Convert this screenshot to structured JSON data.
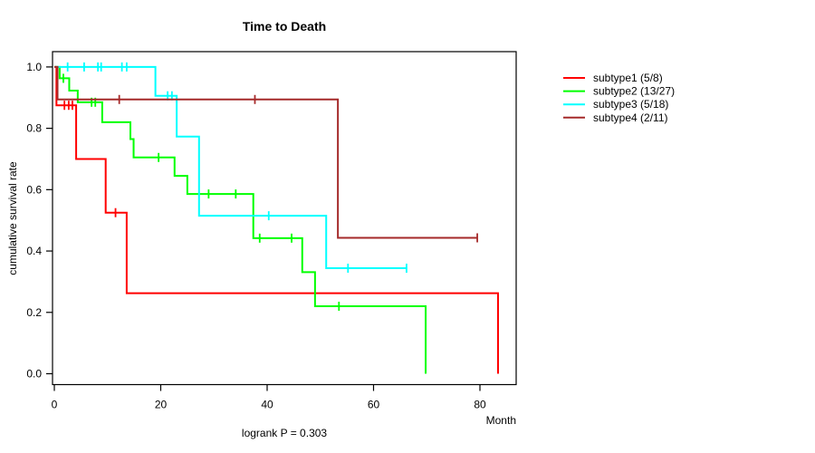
{
  "chart_data": {
    "type": "line",
    "subtype": "kaplan-meier-step-curves",
    "title": "Time to Death",
    "xlabel": "Month",
    "ylabel": "cumulative survival rate",
    "annotation": "logrank P = 0.303",
    "xlim": [
      0,
      87
    ],
    "ylim": [
      -0.04,
      1.04
    ],
    "xticks": [
      0,
      20,
      40,
      60,
      80
    ],
    "yticks": [
      "0.0",
      "0.2",
      "0.4",
      "0.6",
      "0.8",
      "1.0"
    ],
    "grid": false,
    "legend_position": "right-outside",
    "frame_color": "#000000",
    "series": [
      {
        "name": "subtype1 (5/8)",
        "color": "#FF0000",
        "start": [
          0,
          1.0
        ],
        "steps": [
          [
            0.4,
            0.875
          ],
          [
            4.1,
            0.7
          ],
          [
            9.65,
            0.525
          ],
          [
            13.6,
            0.2625
          ],
          [
            83.4,
            0.0
          ]
        ],
        "end_month": 83.4,
        "censors": [
          [
            1.9,
            0.875
          ],
          [
            2.7,
            0.875
          ],
          [
            3.4,
            0.875
          ],
          [
            11.5,
            0.525
          ]
        ]
      },
      {
        "name": "subtype2 (13/27)",
        "color": "#00FF00",
        "start": [
          0,
          1.0
        ],
        "steps": [
          [
            1.0,
            0.963
          ],
          [
            2.8,
            0.923
          ],
          [
            4.4,
            0.885
          ],
          [
            9.0,
            0.82
          ],
          [
            14.3,
            0.765
          ],
          [
            14.9,
            0.705
          ],
          [
            22.6,
            0.645
          ],
          [
            25.0,
            0.586
          ],
          [
            37.4,
            0.442
          ],
          [
            46.6,
            0.331
          ],
          [
            49.0,
            0.22
          ],
          [
            69.8,
            0.0
          ]
        ],
        "end_month": 69.8,
        "censors": [
          [
            1.7,
            0.963
          ],
          [
            7.0,
            0.885
          ],
          [
            7.7,
            0.885
          ],
          [
            19.6,
            0.705
          ],
          [
            29.0,
            0.586
          ],
          [
            34.1,
            0.586
          ],
          [
            38.6,
            0.442
          ],
          [
            44.6,
            0.442
          ],
          [
            53.5,
            0.22
          ]
        ]
      },
      {
        "name": "subtype3 (5/18)",
        "color": "#00FFFF",
        "start": [
          0,
          1.0
        ],
        "steps": [
          [
            19.0,
            0.906
          ],
          [
            23.0,
            0.773
          ],
          [
            27.2,
            0.515
          ],
          [
            51.1,
            0.344
          ]
        ],
        "end_month": 66.2,
        "censors": [
          [
            2.5,
            1.0
          ],
          [
            5.6,
            1.0
          ],
          [
            8.2,
            1.0
          ],
          [
            8.8,
            1.0
          ],
          [
            12.7,
            1.0
          ],
          [
            13.6,
            1.0
          ],
          [
            21.3,
            0.906
          ],
          [
            22.1,
            0.906
          ],
          [
            40.3,
            0.515
          ],
          [
            55.2,
            0.344
          ],
          [
            66.2,
            0.344
          ]
        ]
      },
      {
        "name": "subtype4 (2/11)",
        "color": "#A52A2A",
        "start": [
          0,
          1.0
        ],
        "steps": [
          [
            0.6,
            0.894
          ],
          [
            53.3,
            0.443
          ]
        ],
        "end_month": 79.5,
        "censors": [
          [
            12.2,
            0.894
          ],
          [
            37.7,
            0.894
          ],
          [
            79.5,
            0.443
          ]
        ]
      }
    ],
    "legend": [
      {
        "label": "subtype1 (5/8)",
        "color": "#FF0000"
      },
      {
        "label": "subtype2 (13/27)",
        "color": "#00FF00"
      },
      {
        "label": "subtype3 (5/18)",
        "color": "#00FFFF"
      },
      {
        "label": "subtype4 (2/11)",
        "color": "#A52A2A"
      }
    ]
  }
}
